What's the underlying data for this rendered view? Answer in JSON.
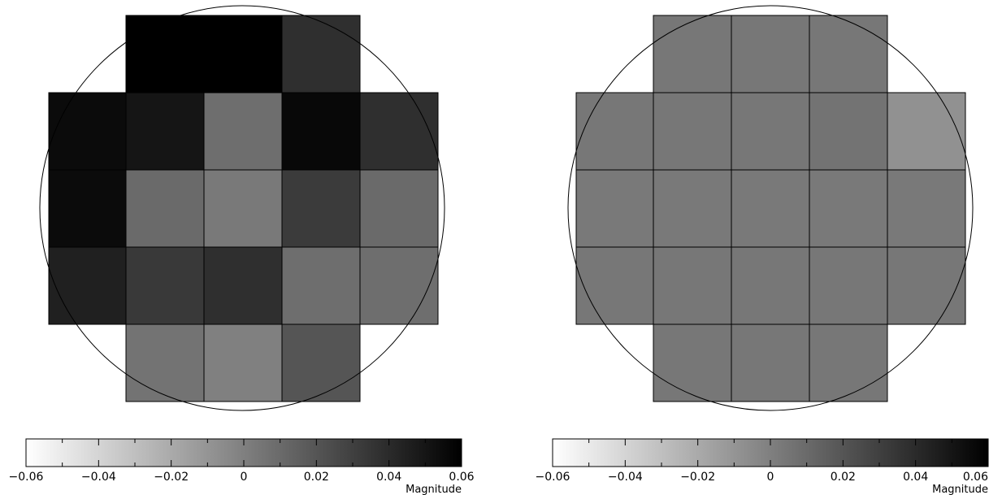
{
  "chart_data": [
    {
      "type": "heatmap",
      "title": "",
      "colorbar": {
        "label": "Magnitude",
        "range": [
          -0.06,
          0.06
        ],
        "ticks": [
          -0.06,
          -0.04,
          -0.02,
          0,
          0.02,
          0.04,
          0.06
        ],
        "tick_labels": [
          "−0.06",
          "−0.04",
          "−0.02",
          "0",
          "0.02",
          "0.04",
          "0.06"
        ],
        "colormap": "white-to-black",
        "orientation": "horizontal",
        "placement": "bottom"
      },
      "outline": "circle",
      "grid": [
        [
          null,
          0.06,
          0.06,
          0.038,
          null
        ],
        [
          0.055,
          0.05,
          0.008,
          0.056,
          0.038
        ],
        [
          0.055,
          0.01,
          0.003,
          0.032,
          0.01
        ],
        [
          0.045,
          0.033,
          0.038,
          0.008,
          0.008
        ],
        [
          null,
          0.006,
          0.0,
          0.02,
          null
        ]
      ]
    },
    {
      "type": "heatmap",
      "title": "",
      "colorbar": {
        "label": "Magnitude",
        "range": [
          -0.06,
          0.06
        ],
        "ticks": [
          -0.06,
          -0.04,
          -0.02,
          0,
          0.02,
          0.04,
          0.06
        ],
        "tick_labels": [
          "−0.06",
          "−0.04",
          "−0.02",
          "0",
          "0.02",
          "0.04",
          "0.06"
        ],
        "colormap": "white-to-black",
        "orientation": "horizontal",
        "placement": "bottom"
      },
      "outline": "circle",
      "grid": [
        [
          null,
          0.004,
          0.004,
          0.004,
          null
        ],
        [
          0.004,
          0.004,
          0.004,
          0.006,
          -0.008
        ],
        [
          0.003,
          0.003,
          0.003,
          0.003,
          0.003
        ],
        [
          0.004,
          0.004,
          0.004,
          0.004,
          0.004
        ],
        [
          null,
          0.004,
          0.004,
          0.004,
          null
        ]
      ]
    }
  ]
}
